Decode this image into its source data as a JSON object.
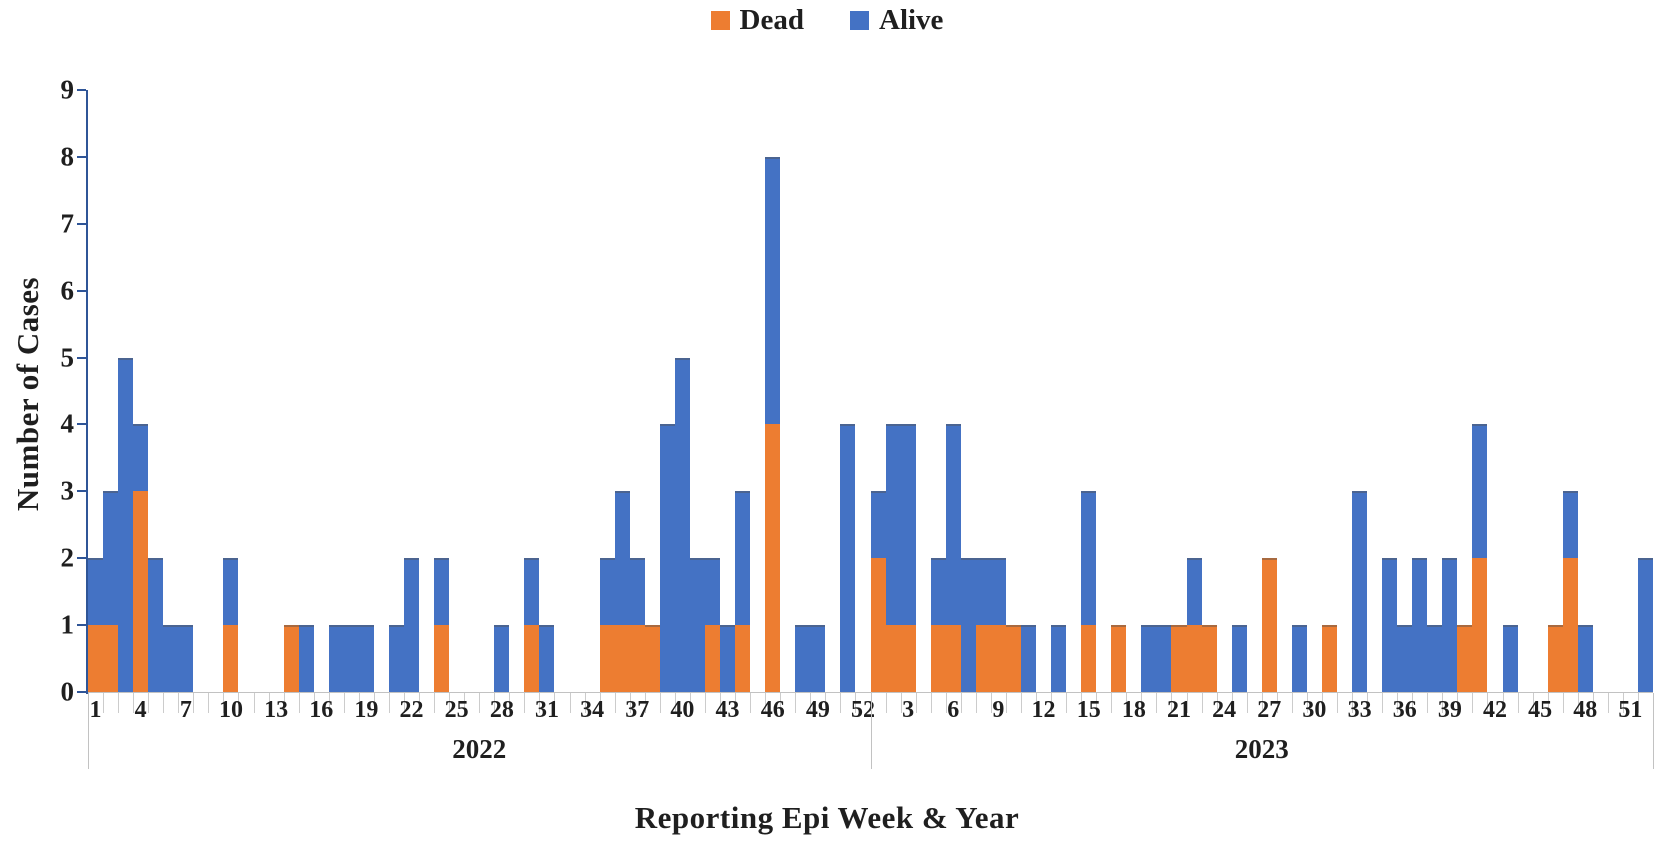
{
  "legend": {
    "items": [
      {
        "label": "Dead",
        "color": "#ED7D31",
        "icon": "legend-swatch-square"
      },
      {
        "label": "Alive",
        "color": "#4472C4",
        "icon": "legend-swatch-square"
      }
    ]
  },
  "axis_style": {
    "y_axis_color": "#2F5597",
    "x_tick_color": "#CCCCCC",
    "text_color": "#1F1F1F"
  },
  "chart_data": {
    "type": "bar",
    "stacked": true,
    "title": "",
    "ylabel": "Number of Cases",
    "xlabel": "Reporting Epi Week & Year",
    "ylim": [
      0,
      9
    ],
    "yticks": [
      0,
      1,
      2,
      3,
      4,
      5,
      6,
      7,
      8,
      9
    ],
    "grid": false,
    "legend_position": "top-center",
    "series": [
      {
        "name": "Dead",
        "color": "#ED7D31"
      },
      {
        "name": "Alive",
        "color": "#4472C4"
      }
    ],
    "groups": [
      {
        "year": "2022",
        "n_weeks": 52,
        "tick_weeks": [
          1,
          4,
          7,
          10,
          13,
          16,
          19,
          22,
          25,
          28,
          31,
          34,
          37,
          40,
          43,
          46,
          49,
          52
        ],
        "dead": [
          1,
          1,
          0,
          3,
          0,
          0,
          0,
          0,
          0,
          1,
          0,
          0,
          0,
          1,
          0,
          0,
          0,
          0,
          0,
          0,
          0,
          0,
          0,
          1,
          0,
          0,
          0,
          0,
          0,
          1,
          0,
          0,
          0,
          0,
          1,
          1,
          1,
          1,
          0,
          0,
          0,
          1,
          0,
          1,
          0,
          4,
          0,
          0,
          0,
          0,
          0,
          0
        ],
        "alive": [
          1,
          2,
          5,
          1,
          2,
          1,
          1,
          0,
          0,
          1,
          0,
          0,
          0,
          0,
          1,
          0,
          1,
          1,
          1,
          0,
          1,
          2,
          0,
          1,
          0,
          0,
          0,
          1,
          0,
          1,
          1,
          0,
          0,
          0,
          1,
          2,
          1,
          0,
          4,
          5,
          2,
          1,
          1,
          2,
          0,
          4,
          0,
          1,
          1,
          0,
          4,
          0
        ]
      },
      {
        "year": "2023",
        "n_weeks": 52,
        "tick_weeks": [
          3,
          6,
          9,
          12,
          15,
          18,
          21,
          24,
          27,
          30,
          33,
          36,
          39,
          42,
          45,
          48,
          51
        ],
        "dead": [
          2,
          1,
          1,
          0,
          1,
          1,
          0,
          1,
          1,
          1,
          0,
          0,
          0,
          0,
          1,
          0,
          1,
          0,
          0,
          0,
          1,
          1,
          1,
          0,
          0,
          0,
          2,
          0,
          0,
          0,
          1,
          0,
          0,
          0,
          0,
          0,
          0,
          0,
          0,
          1,
          2,
          0,
          0,
          0,
          0,
          1,
          2,
          0,
          0,
          0,
          0,
          0
        ],
        "alive": [
          1,
          3,
          3,
          0,
          1,
          3,
          2,
          1,
          1,
          0,
          1,
          0,
          1,
          0,
          2,
          0,
          0,
          0,
          1,
          1,
          0,
          1,
          0,
          0,
          1,
          0,
          0,
          0,
          1,
          0,
          0,
          0,
          3,
          0,
          2,
          1,
          2,
          1,
          2,
          0,
          2,
          0,
          1,
          0,
          0,
          0,
          1,
          1,
          0,
          0,
          0,
          2
        ]
      }
    ]
  }
}
